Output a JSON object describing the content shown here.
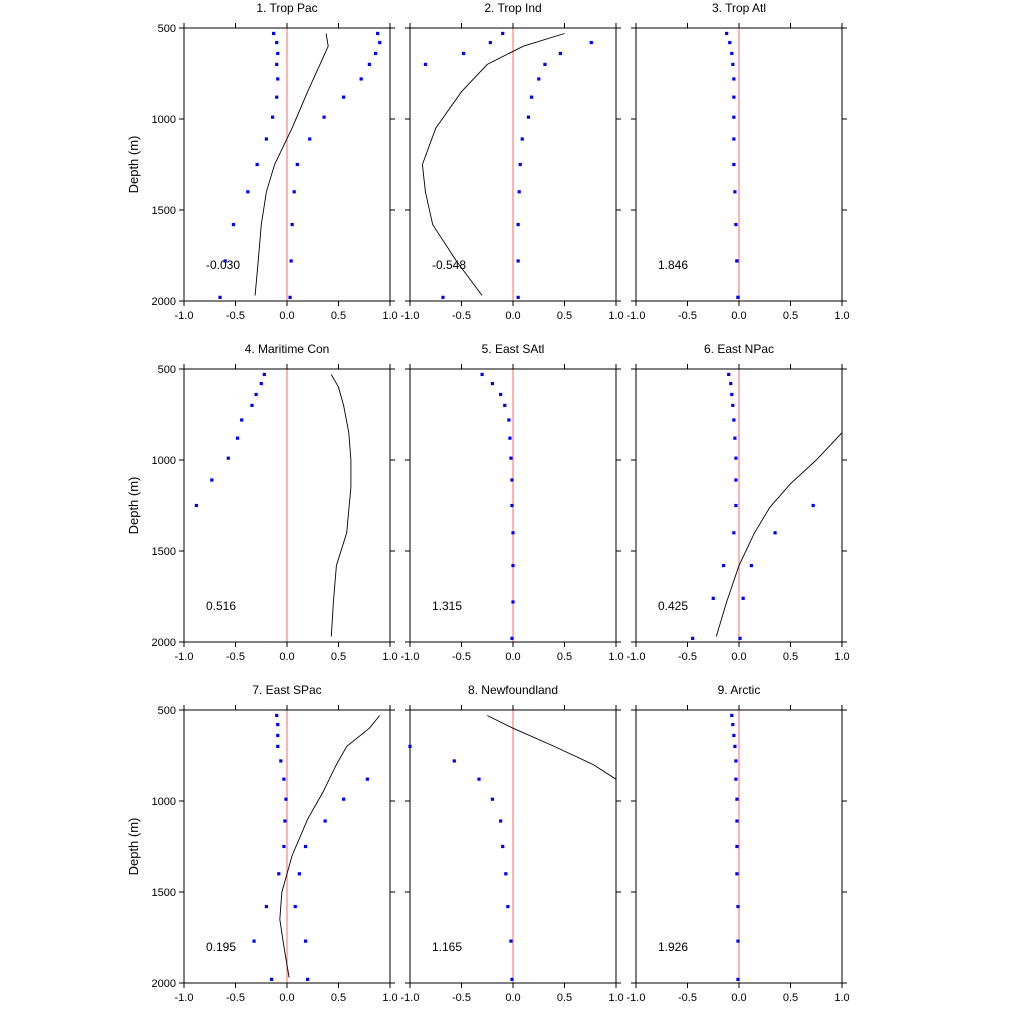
{
  "chart_data": {
    "type": "scatter",
    "layout": "3x3 grid of panels",
    "ylabel": "Depth (m)",
    "xlim": [
      -1.0,
      1.0
    ],
    "ylim": [
      2000,
      500
    ],
    "y_inverted": true,
    "x_ticks": [
      "-1.0",
      "-0.5",
      "0.0",
      "0.5",
      "1.0"
    ],
    "y_ticks": [
      "500",
      "1000",
      "1500",
      "2000"
    ],
    "zero_line_color": "#ff8080",
    "dot_colors": [
      "#0000ff",
      "#ff0000"
    ],
    "line_color": "#000000",
    "panels": [
      {
        "title": "1. Trop Pac",
        "stat": "-0.030",
        "line": [
          [
            0.38,
            530
          ],
          [
            0.4,
            600
          ],
          [
            0.32,
            700
          ],
          [
            0.2,
            850
          ],
          [
            0.05,
            1050
          ],
          [
            -0.12,
            1250
          ],
          [
            -0.2,
            1400
          ],
          [
            -0.25,
            1580
          ],
          [
            -0.28,
            1780
          ],
          [
            -0.31,
            1970
          ]
        ],
        "dots_a": [
          [
            -0.13,
            530
          ],
          [
            -0.1,
            580
          ],
          [
            -0.09,
            640
          ],
          [
            -0.1,
            700
          ],
          [
            -0.09,
            780
          ],
          [
            -0.1,
            880
          ],
          [
            -0.14,
            990
          ],
          [
            -0.2,
            1110
          ],
          [
            -0.29,
            1250
          ],
          [
            -0.38,
            1400
          ],
          [
            -0.52,
            1580
          ],
          [
            -0.6,
            1780
          ],
          [
            -0.65,
            1980
          ]
        ],
        "dots_b": [
          [
            0.88,
            530
          ],
          [
            0.9,
            580
          ],
          [
            0.86,
            640
          ],
          [
            0.8,
            700
          ],
          [
            0.72,
            780
          ],
          [
            0.55,
            880
          ],
          [
            0.36,
            990
          ],
          [
            0.22,
            1110
          ],
          [
            0.1,
            1250
          ],
          [
            0.07,
            1400
          ],
          [
            0.05,
            1580
          ],
          [
            0.04,
            1780
          ],
          [
            0.03,
            1980
          ]
        ]
      },
      {
        "title": "2. Trop Ind",
        "stat": "-0.548",
        "line": [
          [
            0.5,
            530
          ],
          [
            0.1,
            600
          ],
          [
            -0.25,
            700
          ],
          [
            -0.5,
            850
          ],
          [
            -0.75,
            1050
          ],
          [
            -0.88,
            1250
          ],
          [
            -0.85,
            1400
          ],
          [
            -0.78,
            1580
          ],
          [
            -0.55,
            1780
          ],
          [
            -0.3,
            1970
          ]
        ],
        "dots_a": [
          [
            -0.1,
            530
          ],
          [
            -0.22,
            580
          ],
          [
            -0.48,
            640
          ],
          [
            -0.85,
            700
          ],
          [
            -0.68,
            1980
          ]
        ],
        "dots_b": [
          [
            0.76,
            580
          ],
          [
            0.46,
            640
          ],
          [
            0.31,
            700
          ],
          [
            0.25,
            780
          ],
          [
            0.18,
            880
          ],
          [
            0.15,
            990
          ],
          [
            0.09,
            1110
          ],
          [
            0.07,
            1250
          ],
          [
            0.06,
            1400
          ],
          [
            0.05,
            1580
          ],
          [
            0.05,
            1780
          ],
          [
            0.05,
            1980
          ]
        ]
      },
      {
        "title": "3. Trop Atl",
        "stat": "1.846",
        "line": [],
        "dots_a": [
          [
            -0.12,
            530
          ],
          [
            -0.09,
            580
          ],
          [
            -0.07,
            640
          ],
          [
            -0.06,
            700
          ],
          [
            -0.05,
            780
          ],
          [
            -0.05,
            880
          ],
          [
            -0.05,
            990
          ],
          [
            -0.05,
            1110
          ],
          [
            -0.05,
            1250
          ],
          [
            -0.04,
            1400
          ],
          [
            -0.03,
            1580
          ],
          [
            -0.02,
            1780
          ],
          [
            -0.01,
            1980
          ]
        ],
        "dots_b": [
          [
            -0.02,
            1780
          ],
          [
            -0.01,
            1980
          ]
        ]
      },
      {
        "title": "4. Maritime Con",
        "stat": "0.516",
        "line": [
          [
            0.43,
            530
          ],
          [
            0.5,
            600
          ],
          [
            0.55,
            700
          ],
          [
            0.6,
            850
          ],
          [
            0.62,
            1000
          ],
          [
            0.62,
            1150
          ],
          [
            0.58,
            1400
          ],
          [
            0.48,
            1580
          ],
          [
            0.45,
            1780
          ],
          [
            0.43,
            1970
          ]
        ],
        "dots_a": [
          [
            -0.22,
            530
          ],
          [
            -0.25,
            580
          ],
          [
            -0.3,
            640
          ],
          [
            -0.34,
            700
          ],
          [
            -0.44,
            780
          ],
          [
            -0.48,
            880
          ],
          [
            -0.57,
            990
          ],
          [
            -0.73,
            1110
          ],
          [
            -0.88,
            1250
          ]
        ],
        "dots_b": []
      },
      {
        "title": "5. East SAtl",
        "stat": "1.315",
        "line": [],
        "dots_a": [
          [
            -0.3,
            530
          ],
          [
            -0.2,
            580
          ],
          [
            -0.12,
            640
          ],
          [
            -0.08,
            700
          ],
          [
            -0.04,
            780
          ],
          [
            -0.03,
            880
          ],
          [
            -0.02,
            990
          ],
          [
            -0.01,
            1110
          ],
          [
            -0.01,
            1250
          ],
          [
            0.0,
            1400
          ],
          [
            0.0,
            1580
          ],
          [
            0.0,
            1780
          ],
          [
            -0.01,
            1980
          ]
        ],
        "dots_b": []
      },
      {
        "title": "6. East NPac",
        "stat": "0.425",
        "line": [
          [
            1.0,
            850
          ],
          [
            0.75,
            1000
          ],
          [
            0.5,
            1130
          ],
          [
            0.3,
            1260
          ],
          [
            0.15,
            1400
          ],
          [
            0.0,
            1580
          ],
          [
            -0.12,
            1780
          ],
          [
            -0.22,
            1970
          ]
        ],
        "dots_a": [
          [
            -0.1,
            530
          ],
          [
            -0.08,
            580
          ],
          [
            -0.07,
            640
          ],
          [
            -0.06,
            700
          ],
          [
            -0.05,
            780
          ],
          [
            -0.04,
            880
          ],
          [
            -0.03,
            990
          ],
          [
            -0.03,
            1110
          ],
          [
            -0.03,
            1250
          ],
          [
            -0.05,
            1400
          ],
          [
            -0.15,
            1580
          ],
          [
            -0.25,
            1760
          ],
          [
            -0.45,
            1980
          ]
        ],
        "dots_b": [
          [
            0.72,
            1250
          ],
          [
            0.35,
            1400
          ],
          [
            0.12,
            1580
          ],
          [
            0.04,
            1760
          ],
          [
            0.01,
            1980
          ]
        ]
      },
      {
        "title": "7. East SPac",
        "stat": "0.195",
        "line": [
          [
            0.9,
            530
          ],
          [
            0.8,
            600
          ],
          [
            0.58,
            700
          ],
          [
            0.48,
            800
          ],
          [
            0.35,
            950
          ],
          [
            0.2,
            1100
          ],
          [
            0.05,
            1300
          ],
          [
            -0.05,
            1500
          ],
          [
            -0.07,
            1650
          ],
          [
            -0.03,
            1800
          ],
          [
            0.02,
            1970
          ]
        ],
        "dots_a": [
          [
            -0.1,
            530
          ],
          [
            -0.09,
            580
          ],
          [
            -0.09,
            640
          ],
          [
            -0.09,
            700
          ],
          [
            -0.06,
            780
          ],
          [
            -0.03,
            880
          ],
          [
            -0.01,
            990
          ],
          [
            -0.02,
            1110
          ],
          [
            -0.03,
            1250
          ],
          [
            -0.08,
            1400
          ],
          [
            -0.2,
            1580
          ],
          [
            -0.32,
            1770
          ],
          [
            -0.15,
            1980
          ]
        ],
        "dots_b": [
          [
            0.78,
            880
          ],
          [
            0.55,
            990
          ],
          [
            0.37,
            1110
          ],
          [
            0.18,
            1250
          ],
          [
            0.12,
            1400
          ],
          [
            0.08,
            1580
          ],
          [
            0.18,
            1770
          ],
          [
            0.2,
            1980
          ]
        ]
      },
      {
        "title": "8. Newfoundland",
        "stat": "1.165",
        "line": [
          [
            -0.25,
            530
          ],
          [
            0.0,
            600
          ],
          [
            0.4,
            700
          ],
          [
            0.78,
            800
          ],
          [
            1.0,
            880
          ]
        ],
        "dots_a": [
          [
            -1.0,
            700
          ],
          [
            -0.57,
            780
          ],
          [
            -0.33,
            880
          ],
          [
            -0.2,
            990
          ],
          [
            -0.12,
            1110
          ],
          [
            -0.1,
            1250
          ],
          [
            -0.07,
            1400
          ],
          [
            -0.05,
            1580
          ],
          [
            -0.02,
            1770
          ],
          [
            -0.01,
            1980
          ]
        ],
        "dots_b": []
      },
      {
        "title": "9. Arctic",
        "stat": "1.926",
        "line": [],
        "dots_a": [
          [
            -0.07,
            530
          ],
          [
            -0.06,
            580
          ],
          [
            -0.05,
            640
          ],
          [
            -0.04,
            700
          ],
          [
            -0.03,
            780
          ],
          [
            -0.03,
            880
          ],
          [
            -0.02,
            990
          ],
          [
            -0.02,
            1110
          ],
          [
            -0.02,
            1250
          ],
          [
            -0.02,
            1400
          ],
          [
            -0.01,
            1580
          ],
          [
            -0.01,
            1770
          ],
          [
            -0.01,
            1980
          ]
        ],
        "dots_b": []
      }
    ]
  }
}
